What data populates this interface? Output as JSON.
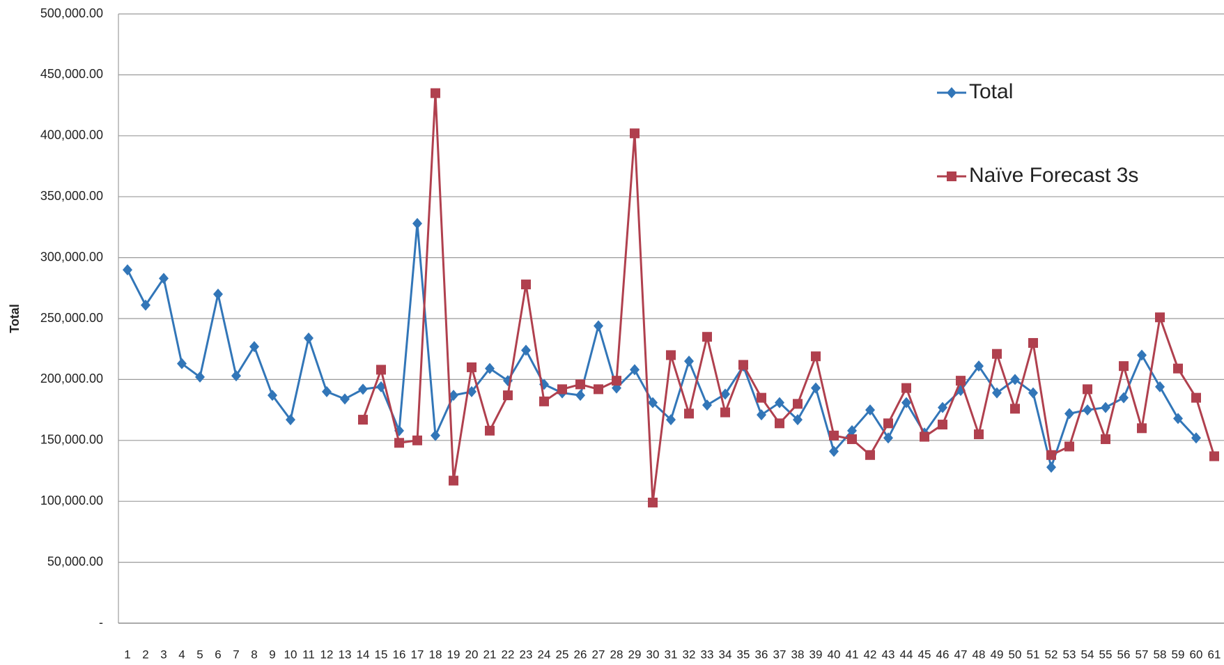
{
  "chart_data": {
    "type": "line",
    "y_label": "Total",
    "categories": [
      "1",
      "2",
      "3",
      "4",
      "5",
      "6",
      "7",
      "8",
      "9",
      "10",
      "11",
      "12",
      "13",
      "14",
      "15",
      "16",
      "17",
      "18",
      "19",
      "20",
      "21",
      "22",
      "23",
      "24",
      "25",
      "26",
      "27",
      "28",
      "29",
      "30",
      "31",
      "32",
      "33",
      "34",
      "35",
      "36",
      "37",
      "38",
      "39",
      "40",
      "41",
      "42",
      "43",
      "44",
      "45",
      "46",
      "47",
      "48",
      "49",
      "50",
      "51",
      "52",
      "53",
      "54",
      "55",
      "56",
      "57",
      "58",
      "59",
      "60",
      "61"
    ],
    "series": [
      {
        "name": "Total",
        "color": "#3276b8",
        "marker": "diamond",
        "values": [
          290000,
          261000,
          283000,
          213000,
          202000,
          270000,
          203000,
          227000,
          187000,
          167000,
          234000,
          190000,
          184000,
          192000,
          194000,
          158000,
          328000,
          154000,
          187000,
          190000,
          209000,
          199000,
          224000,
          196000,
          189000,
          187000,
          244000,
          193000,
          208000,
          181000,
          167000,
          215000,
          179000,
          188000,
          211000,
          171000,
          181000,
          167000,
          193000,
          141000,
          158000,
          175000,
          152000,
          181000,
          156000,
          177000,
          191000,
          211000,
          189000,
          200000,
          189000,
          128000,
          172000,
          175000,
          177000,
          185000,
          220000,
          194000,
          168000,
          152000,
          null
        ]
      },
      {
        "name": "Naïve Forecast 3s",
        "color": "#b0404e",
        "marker": "square",
        "values": [
          null,
          null,
          null,
          null,
          null,
          null,
          null,
          null,
          null,
          null,
          null,
          null,
          null,
          167000,
          208000,
          148000,
          150000,
          435000,
          117000,
          210000,
          158000,
          187000,
          278000,
          182000,
          192000,
          196000,
          192000,
          199000,
          402000,
          99000,
          220000,
          172000,
          235000,
          173000,
          212000,
          185000,
          164000,
          180000,
          219000,
          154000,
          151000,
          138000,
          164000,
          193000,
          153000,
          163000,
          199000,
          155000,
          221000,
          176000,
          230000,
          138000,
          145000,
          192000,
          151000,
          211000,
          160000,
          251000,
          209000,
          185000,
          137000
        ]
      }
    ],
    "ylim": [
      0,
      500000
    ],
    "yticks": [
      {
        "value": 0,
        "label": "-"
      },
      {
        "value": 50000,
        "label": "50,000.00"
      },
      {
        "value": 100000,
        "label": "100,000.00"
      },
      {
        "value": 150000,
        "label": "150,000.00"
      },
      {
        "value": 200000,
        "label": "200,000.00"
      },
      {
        "value": 250000,
        "label": "250,000.00"
      },
      {
        "value": 300000,
        "label": "300,000.00"
      },
      {
        "value": 350000,
        "label": "350,000.00"
      },
      {
        "value": 400000,
        "label": "400,000.00"
      },
      {
        "value": 450000,
        "label": "450,000.00"
      },
      {
        "value": 500000,
        "label": "500,000.00"
      }
    ],
    "grid": true,
    "legend": "upper right"
  }
}
